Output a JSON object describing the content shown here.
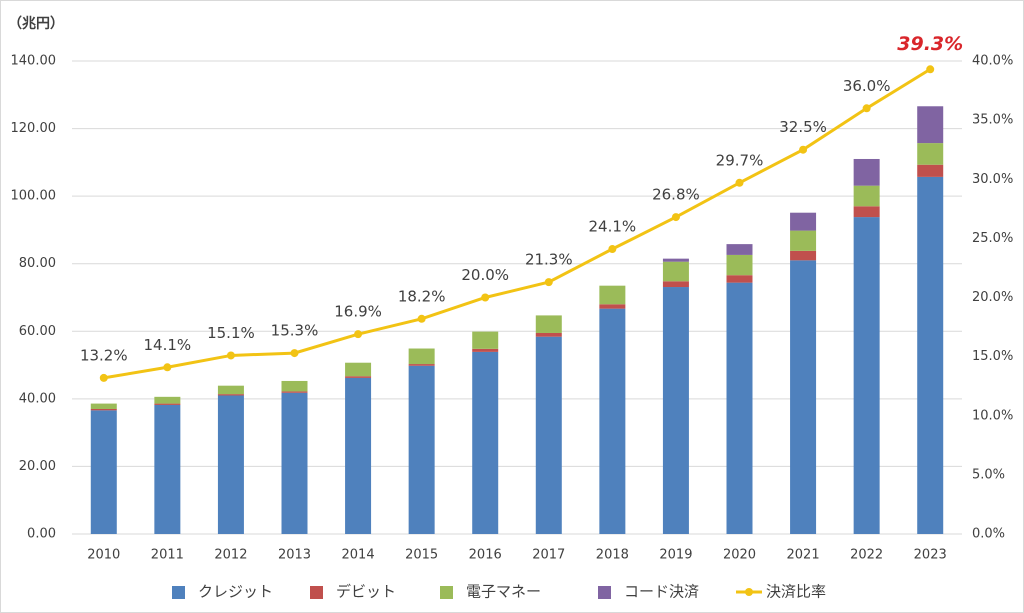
{
  "chart_data": {
    "type": "bar",
    "stacked": true,
    "y_axis_label": "（兆円）",
    "categories": [
      "2010",
      "2011",
      "2012",
      "2013",
      "2014",
      "2015",
      "2016",
      "2017",
      "2018",
      "2019",
      "2020",
      "2021",
      "2022",
      "2023"
    ],
    "series": [
      {
        "name": "クレジット",
        "color": "#4f81bd",
        "values": [
          36.6,
          38.2,
          41.0,
          41.8,
          46.2,
          49.8,
          53.9,
          58.4,
          66.7,
          73.1,
          74.4,
          81.0,
          93.8,
          105.7
        ]
      },
      {
        "name": "デビット",
        "color": "#c0504d",
        "values": [
          0.4,
          0.4,
          0.4,
          0.4,
          0.5,
          0.5,
          0.9,
          1.1,
          1.3,
          1.7,
          2.2,
          2.8,
          3.2,
          3.6
        ]
      },
      {
        "name": "電子マネー",
        "color": "#9bbb59",
        "values": [
          1.6,
          2.0,
          2.5,
          3.1,
          4.0,
          4.6,
          5.1,
          5.2,
          5.5,
          5.8,
          6.0,
          6.0,
          6.1,
          6.4
        ]
      },
      {
        "name": "コード決済",
        "color": "#8064a2",
        "values": [
          null,
          null,
          null,
          null,
          null,
          null,
          null,
          null,
          null,
          0.9,
          3.2,
          5.3,
          7.9,
          10.9
        ]
      },
      {
        "name": "決済比率",
        "color": "#f2c314",
        "type": "line",
        "axis": "y2",
        "values": [
          13.2,
          14.1,
          15.1,
          15.3,
          16.9,
          18.2,
          20.0,
          21.3,
          24.1,
          26.8,
          29.7,
          32.5,
          36.0,
          39.3
        ],
        "value_labels": [
          "13.2%",
          "14.1%",
          "15.1%",
          "15.3%",
          "16.9%",
          "18.2%",
          "20.0%",
          "21.3%",
          "24.1%",
          "26.8%",
          "29.7%",
          "32.5%",
          "36.0%",
          "39.3%"
        ]
      }
    ],
    "highlight_last_label_color": "#d9262b",
    "ylim": [
      0,
      140
    ],
    "yticks": [
      {
        "value": 0,
        "label": "0.00"
      },
      {
        "value": 20,
        "label": "20.00"
      },
      {
        "value": 40,
        "label": "40.00"
      },
      {
        "value": 60,
        "label": "60.00"
      },
      {
        "value": 80,
        "label": "80.00"
      },
      {
        "value": 100,
        "label": "100.00"
      },
      {
        "value": 120,
        "label": "120.00"
      },
      {
        "value": 140,
        "label": "140.00"
      }
    ],
    "y2lim": [
      0,
      40
    ],
    "y2ticks": [
      {
        "value": 0,
        "label": "0.0%"
      },
      {
        "value": 5,
        "label": "5.0%"
      },
      {
        "value": 10,
        "label": "10.0%"
      },
      {
        "value": 15,
        "label": "15.0%"
      },
      {
        "value": 20,
        "label": "20.0%"
      },
      {
        "value": 25,
        "label": "25.0%"
      },
      {
        "value": 30,
        "label": "30.0%"
      },
      {
        "value": 35,
        "label": "35.0%"
      },
      {
        "value": 40,
        "label": "40.0%"
      }
    ],
    "grid": true,
    "legend": "bottom"
  }
}
